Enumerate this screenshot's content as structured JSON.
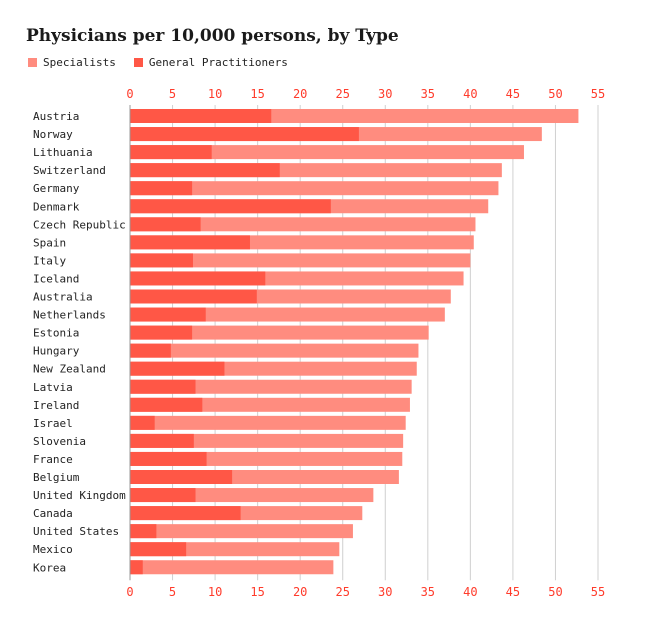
{
  "chart_data": {
    "type": "bar",
    "orientation": "horizontal",
    "stacked": "overlay",
    "title": "Physicians per 10,000 persons, by Type",
    "categories": [
      "Austria",
      "Norway",
      "Lithuania",
      "Switzerland",
      "Germany",
      "Denmark",
      "Czech Republic",
      "Spain",
      "Italy",
      "Iceland",
      "Australia",
      "Netherlands",
      "Estonia",
      "Hungary",
      "New Zealand",
      "Latvia",
      "Ireland",
      "Israel",
      "Slovenia",
      "France",
      "Belgium",
      "United Kingdom",
      "Canada",
      "United States",
      "Mexico",
      "Korea"
    ],
    "series": [
      {
        "name": "Specialists",
        "color": "#ff8c7f",
        "values": [
          52.7,
          48.4,
          46.3,
          43.7,
          43.3,
          42.1,
          40.6,
          40.4,
          40.0,
          39.2,
          37.7,
          37.0,
          35.1,
          33.9,
          33.7,
          33.1,
          32.9,
          32.4,
          32.1,
          32.0,
          31.6,
          28.6,
          27.3,
          26.2,
          24.6,
          23.9
        ]
      },
      {
        "name": "General Practitioners",
        "color": "#ff5746",
        "values": [
          16.6,
          26.9,
          9.6,
          17.6,
          7.3,
          23.6,
          8.3,
          14.1,
          7.4,
          15.9,
          14.9,
          8.9,
          7.3,
          4.8,
          11.1,
          7.7,
          8.5,
          2.9,
          7.5,
          9.0,
          12.0,
          7.7,
          13.0,
          3.1,
          6.6,
          1.5
        ]
      }
    ],
    "xlim": [
      0,
      55
    ],
    "xticks": [
      0,
      5,
      10,
      15,
      20,
      25,
      30,
      35,
      40,
      45,
      50,
      55
    ],
    "grid": true,
    "legend_position": "top-left"
  },
  "colors": {
    "axis_text": "#ff3b2b",
    "grid": "#d0d0d0",
    "label": "#222222"
  }
}
